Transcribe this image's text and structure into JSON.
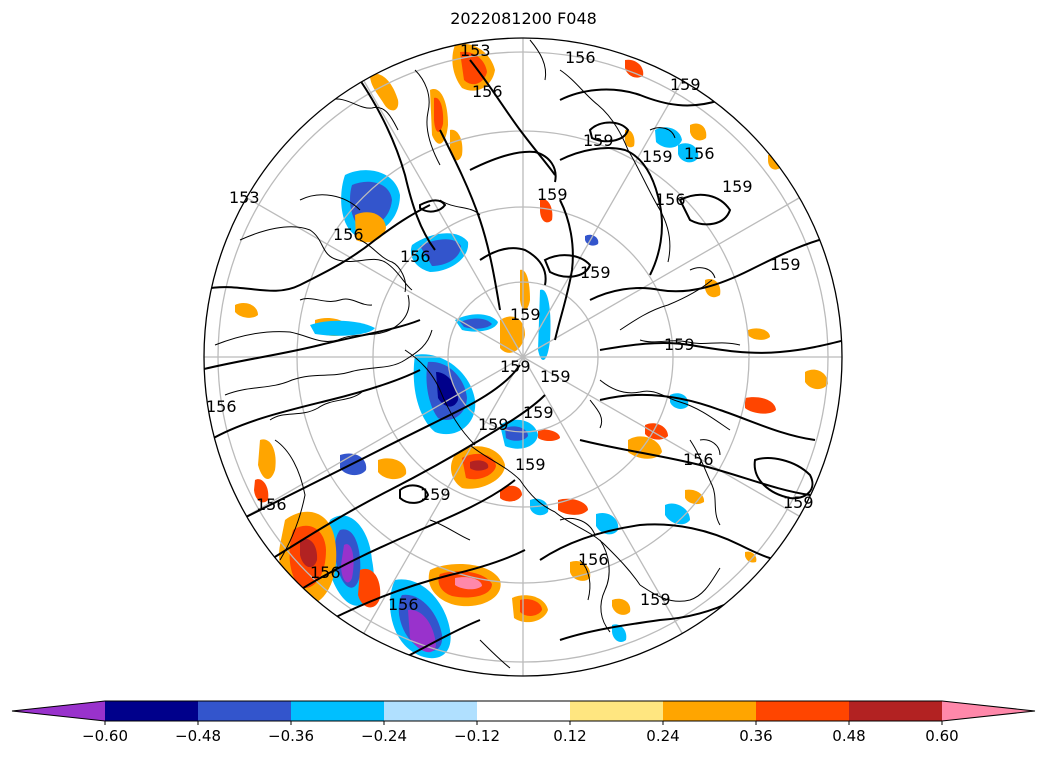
{
  "title": "2022081200 F048",
  "colorbar": {
    "colors": [
      "#9932cc",
      "#00008b",
      "#3355cc",
      "#00bfff",
      "#b0e0ff",
      "#ffffff",
      "#ffe680",
      "#ffa500",
      "#ff4500",
      "#b22222",
      "#ff88aa"
    ],
    "tick_labels": [
      "−0.60",
      "−0.48",
      "−0.36",
      "−0.24",
      "−0.12",
      "0.12",
      "0.24",
      "0.36",
      "0.48",
      "0.60"
    ],
    "extend": "both"
  },
  "contour_labels": [
    "153",
    "156",
    "159",
    "159",
    "159",
    "156",
    "156",
    "159",
    "156",
    "159",
    "159",
    "153",
    "156",
    "156",
    "159",
    "159",
    "159",
    "159",
    "159",
    "159",
    "159",
    "156",
    "159",
    "156",
    "159",
    "156",
    "156",
    "156",
    "156",
    "159",
    "159"
  ],
  "map": {
    "projection": "north-polar-stereographic",
    "gridlines": true,
    "coastlines": true,
    "contour_color": "#000000"
  }
}
